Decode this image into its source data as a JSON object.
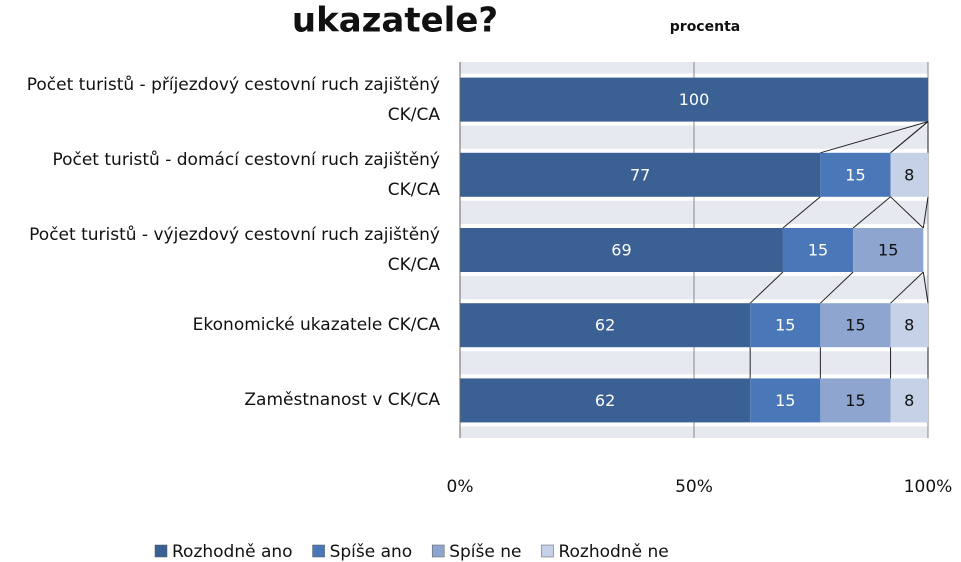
{
  "chart_data": {
    "type": "bar",
    "orientation": "horizontal",
    "stacked": true,
    "title": "ukazatele?",
    "subtitle": "procenta",
    "categories": [
      "Počet turistů - příjezdový cestovní ruch zajištěný CK/CA",
      "Počet turistů - domácí cestovní ruch zajištěný CK/CA",
      "Počet turistů - výjezdový cestovní ruch zajištěný CK/CA",
      "Ekonomické ukazatele CK/CA",
      "Zaměstnanost v CK/CA"
    ],
    "series": [
      {
        "name": "Rozhodně ano",
        "color": "#3b6093",
        "values": [
          100,
          77,
          69,
          62,
          62
        ]
      },
      {
        "name": "Spíše ano",
        "color": "#4977b7",
        "values": [
          null,
          15,
          15,
          15,
          15
        ]
      },
      {
        "name": "Spíše ne",
        "color": "#8ea6cf",
        "values": [
          null,
          null,
          15,
          15,
          15
        ]
      },
      {
        "name": "Rozhodně ne",
        "color": "#c4d1e7",
        "values": [
          null,
          8,
          null,
          8,
          8
        ]
      }
    ],
    "xlim": [
      0,
      100
    ],
    "xticks": [
      {
        "value": 0,
        "label": "0%"
      },
      {
        "value": 50,
        "label": "50%"
      },
      {
        "value": 100,
        "label": "100%"
      }
    ],
    "grid": true,
    "legend": "bottom"
  }
}
